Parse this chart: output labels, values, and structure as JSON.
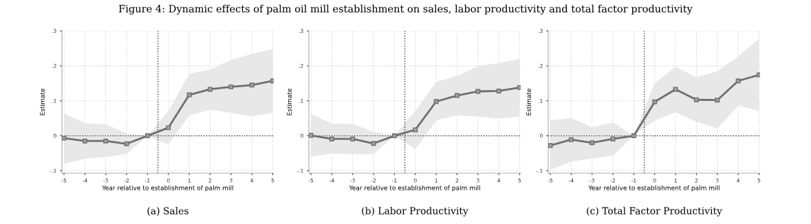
{
  "chart_data": [
    {
      "type": "line",
      "title": "Figure 4: Dynamic effects of palm oil mill establishment on sales, labor productivity and total factor productivity",
      "xlabel": "Year relative to establishment of palm mill",
      "ylabel": "Estimate",
      "annotations": [
        "(a) Sales"
      ],
      "x": [
        -5,
        -4,
        -3,
        -2,
        -1,
        0,
        1,
        2,
        3,
        4,
        5
      ],
      "series": [
        {
          "color": "#6e6e6e",
          "values": [
            -0.007,
            -0.015,
            -0.015,
            -0.023,
            0,
            0.023,
            0.117,
            0.133,
            0.14,
            0.145,
            0.157
          ],
          "lower": [
            -0.081,
            -0.066,
            -0.061,
            -0.052,
            0,
            -0.025,
            0.058,
            0.075,
            0.065,
            0.056,
            0.065
          ],
          "upper": [
            0.064,
            0.036,
            0.032,
            0.007,
            0,
            0.07,
            0.177,
            0.19,
            0.217,
            0.234,
            0.248
          ]
        }
      ],
      "xlim": [
        -5.1,
        5.05
      ],
      "xticks": [
        -5,
        -4,
        -3,
        -2,
        -1,
        0,
        1,
        2,
        3,
        4,
        5
      ],
      "ylim": [
        -0.107,
        0.3
      ],
      "yticks": [
        {
          "value": -0.1,
          "label": "-.1"
        },
        0,
        {
          "value": 0.1,
          "label": ".1"
        },
        {
          "value": 0.2,
          "label": ".2"
        },
        {
          "value": 0.3,
          "label": ".3"
        }
      ],
      "ref_lines": [
        {
          "axis": "x",
          "value": -0.5,
          "color": "#333333",
          "line_style": "dotted"
        },
        {
          "axis": "y",
          "value": 0,
          "color": "#333333",
          "line_style": "dotted"
        }
      ],
      "grid": true,
      "marker": "square",
      "line_style": "solid"
    },
    {
      "type": "line",
      "xlabel": "Year relative to establishment of palm mill",
      "ylabel": "Estimate",
      "annotations": [
        "(b) Labor Productivity"
      ],
      "x": [
        -5,
        -4,
        -3,
        -2,
        -1,
        0,
        1,
        2,
        3,
        4,
        5
      ],
      "series": [
        {
          "color": "#6e6e6e",
          "values": [
            0.001,
            -0.009,
            -0.009,
            -0.022,
            0,
            0.017,
            0.098,
            0.115,
            0.127,
            0.128,
            0.138
          ],
          "lower": [
            -0.06,
            -0.051,
            -0.053,
            -0.053,
            0,
            -0.038,
            0.044,
            0.058,
            0.055,
            0.049,
            0.055
          ],
          "upper": [
            0.062,
            0.035,
            0.034,
            0.011,
            0,
            0.071,
            0.154,
            0.171,
            0.199,
            0.208,
            0.22
          ]
        }
      ],
      "xlim": [
        -5.1,
        5.05
      ],
      "xticks": [
        -5,
        -4,
        -3,
        -2,
        -1,
        0,
        1,
        2,
        3,
        4,
        5
      ],
      "ylim": [
        -0.107,
        0.3
      ],
      "yticks": [
        {
          "value": -0.1,
          "label": "-.1"
        },
        0,
        {
          "value": 0.1,
          "label": ".1"
        },
        {
          "value": 0.2,
          "label": ".2"
        },
        {
          "value": 0.3,
          "label": ".3"
        }
      ],
      "ref_lines": [
        {
          "axis": "x",
          "value": -0.5,
          "color": "#333333",
          "line_style": "dotted"
        },
        {
          "axis": "y",
          "value": 0,
          "color": "#333333",
          "line_style": "dotted"
        }
      ],
      "grid": true,
      "marker": "square",
      "line_style": "solid"
    },
    {
      "type": "line",
      "xlabel": "Year relative to establishment of palm mill",
      "ylabel": "Estimate",
      "annotations": [
        "(c) Total Factor Productivity"
      ],
      "x": [
        -5,
        -4,
        -3,
        -2,
        -1,
        0,
        1,
        2,
        3,
        4,
        5
      ],
      "series": [
        {
          "color": "#6e6e6e",
          "values": [
            -0.028,
            -0.011,
            -0.02,
            -0.009,
            0,
            0.097,
            0.133,
            0.103,
            0.102,
            0.157,
            0.174
          ],
          "lower": [
            -0.097,
            -0.074,
            -0.065,
            -0.057,
            0,
            0.044,
            0.067,
            0.04,
            0.021,
            0.086,
            0.071
          ],
          "upper": [
            0.044,
            0.051,
            0.024,
            0.038,
            0,
            0.15,
            0.198,
            0.167,
            0.185,
            0.227,
            0.278
          ]
        }
      ],
      "xlim": [
        -5.1,
        5.05
      ],
      "xticks": [
        -5,
        -4,
        -3,
        -2,
        -1,
        0,
        1,
        2,
        3,
        4,
        5
      ],
      "ylim": [
        -0.107,
        0.3
      ],
      "yticks": [
        {
          "value": -0.1,
          "label": "-.1"
        },
        0,
        {
          "value": 0.1,
          "label": ".1"
        },
        {
          "value": 0.2,
          "label": ".2"
        },
        {
          "value": 0.3,
          "label": ".3"
        }
      ],
      "ref_lines": [
        {
          "axis": "x",
          "value": -0.5,
          "color": "#333333",
          "line_style": "dotted"
        },
        {
          "axis": "y",
          "value": 0,
          "color": "#333333",
          "line_style": "dotted"
        }
      ],
      "grid": true,
      "marker": "square",
      "line_style": "solid"
    }
  ]
}
